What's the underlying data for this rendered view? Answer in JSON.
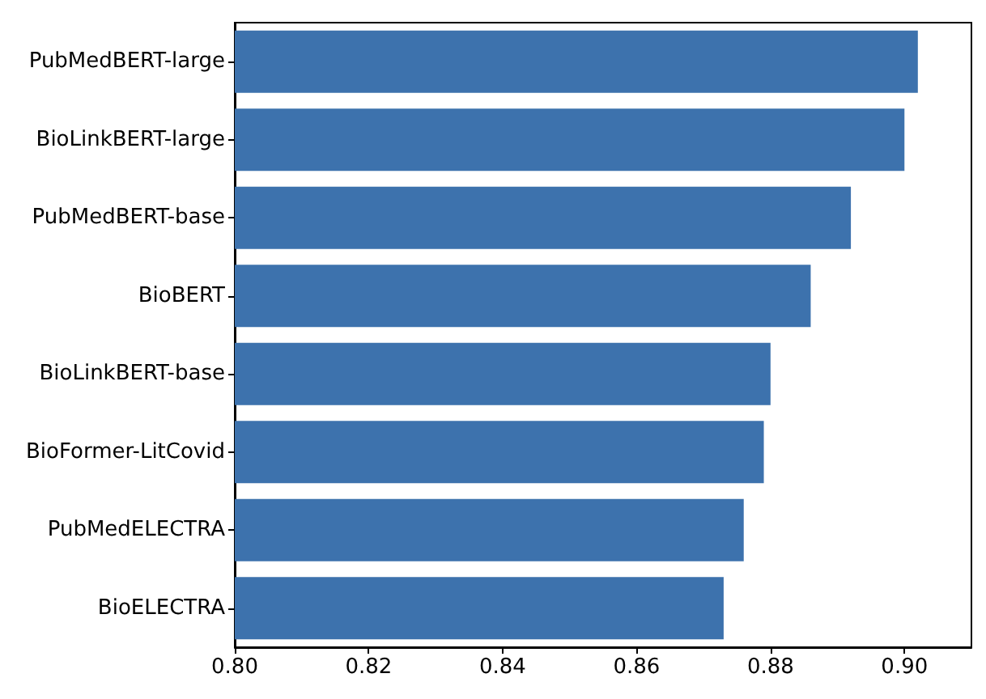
{
  "chart_data": {
    "type": "bar",
    "orientation": "horizontal",
    "categories": [
      "PubMedBERT-large",
      "BioLinkBERT-large",
      "PubMedBERT-base",
      "BioBERT",
      "BioLinkBERT-base",
      "BioFormer-LitCovid",
      "PubMedELECTRA",
      "BioELECTRA"
    ],
    "values": [
      0.902,
      0.9,
      0.892,
      0.886,
      0.88,
      0.879,
      0.876,
      0.873
    ],
    "color": "#3d72ad",
    "xlim": [
      0.8,
      0.91
    ],
    "xticks": [
      {
        "value": 0.8,
        "label": "0.80"
      },
      {
        "value": 0.82,
        "label": "0.82"
      },
      {
        "value": 0.84,
        "label": "0.84"
      },
      {
        "value": 0.86,
        "label": "0.86"
      },
      {
        "value": 0.88,
        "label": "0.88"
      },
      {
        "value": 0.9,
        "label": "0.90"
      }
    ],
    "grid": false
  }
}
